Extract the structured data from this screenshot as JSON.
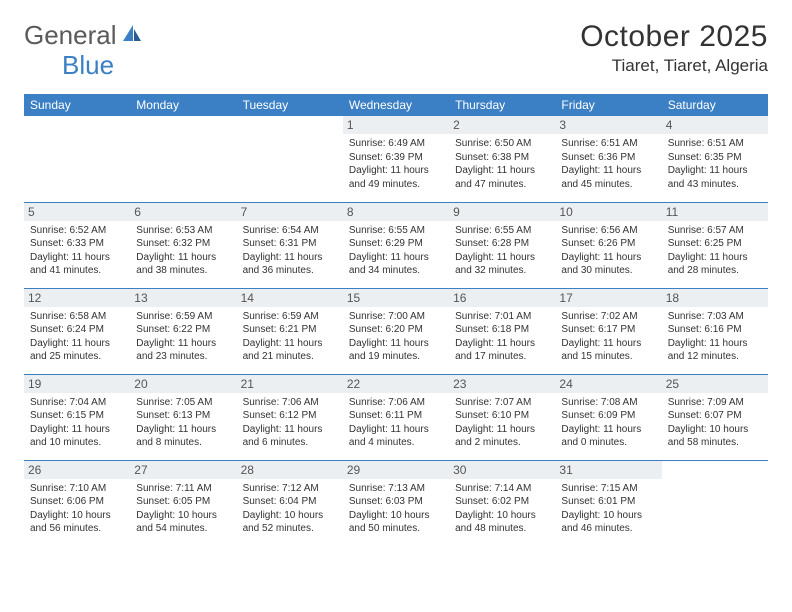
{
  "logo": {
    "text1": "General",
    "text2": "Blue"
  },
  "title": "October 2025",
  "location": "Tiaret, Tiaret, Algeria",
  "colors": {
    "header_bg": "#3b7fc4",
    "header_fg": "#ffffff",
    "daynum_bg": "#eceff1",
    "border": "#3b7fc4",
    "text": "#333333"
  },
  "weekdays": [
    "Sunday",
    "Monday",
    "Tuesday",
    "Wednesday",
    "Thursday",
    "Friday",
    "Saturday"
  ],
  "weeks": [
    [
      {
        "n": "",
        "sr": "",
        "ss": "",
        "dl": ""
      },
      {
        "n": "",
        "sr": "",
        "ss": "",
        "dl": ""
      },
      {
        "n": "",
        "sr": "",
        "ss": "",
        "dl": ""
      },
      {
        "n": "1",
        "sr": "Sunrise: 6:49 AM",
        "ss": "Sunset: 6:39 PM",
        "dl": "Daylight: 11 hours and 49 minutes."
      },
      {
        "n": "2",
        "sr": "Sunrise: 6:50 AM",
        "ss": "Sunset: 6:38 PM",
        "dl": "Daylight: 11 hours and 47 minutes."
      },
      {
        "n": "3",
        "sr": "Sunrise: 6:51 AM",
        "ss": "Sunset: 6:36 PM",
        "dl": "Daylight: 11 hours and 45 minutes."
      },
      {
        "n": "4",
        "sr": "Sunrise: 6:51 AM",
        "ss": "Sunset: 6:35 PM",
        "dl": "Daylight: 11 hours and 43 minutes."
      }
    ],
    [
      {
        "n": "5",
        "sr": "Sunrise: 6:52 AM",
        "ss": "Sunset: 6:33 PM",
        "dl": "Daylight: 11 hours and 41 minutes."
      },
      {
        "n": "6",
        "sr": "Sunrise: 6:53 AM",
        "ss": "Sunset: 6:32 PM",
        "dl": "Daylight: 11 hours and 38 minutes."
      },
      {
        "n": "7",
        "sr": "Sunrise: 6:54 AM",
        "ss": "Sunset: 6:31 PM",
        "dl": "Daylight: 11 hours and 36 minutes."
      },
      {
        "n": "8",
        "sr": "Sunrise: 6:55 AM",
        "ss": "Sunset: 6:29 PM",
        "dl": "Daylight: 11 hours and 34 minutes."
      },
      {
        "n": "9",
        "sr": "Sunrise: 6:55 AM",
        "ss": "Sunset: 6:28 PM",
        "dl": "Daylight: 11 hours and 32 minutes."
      },
      {
        "n": "10",
        "sr": "Sunrise: 6:56 AM",
        "ss": "Sunset: 6:26 PM",
        "dl": "Daylight: 11 hours and 30 minutes."
      },
      {
        "n": "11",
        "sr": "Sunrise: 6:57 AM",
        "ss": "Sunset: 6:25 PM",
        "dl": "Daylight: 11 hours and 28 minutes."
      }
    ],
    [
      {
        "n": "12",
        "sr": "Sunrise: 6:58 AM",
        "ss": "Sunset: 6:24 PM",
        "dl": "Daylight: 11 hours and 25 minutes."
      },
      {
        "n": "13",
        "sr": "Sunrise: 6:59 AM",
        "ss": "Sunset: 6:22 PM",
        "dl": "Daylight: 11 hours and 23 minutes."
      },
      {
        "n": "14",
        "sr": "Sunrise: 6:59 AM",
        "ss": "Sunset: 6:21 PM",
        "dl": "Daylight: 11 hours and 21 minutes."
      },
      {
        "n": "15",
        "sr": "Sunrise: 7:00 AM",
        "ss": "Sunset: 6:20 PM",
        "dl": "Daylight: 11 hours and 19 minutes."
      },
      {
        "n": "16",
        "sr": "Sunrise: 7:01 AM",
        "ss": "Sunset: 6:18 PM",
        "dl": "Daylight: 11 hours and 17 minutes."
      },
      {
        "n": "17",
        "sr": "Sunrise: 7:02 AM",
        "ss": "Sunset: 6:17 PM",
        "dl": "Daylight: 11 hours and 15 minutes."
      },
      {
        "n": "18",
        "sr": "Sunrise: 7:03 AM",
        "ss": "Sunset: 6:16 PM",
        "dl": "Daylight: 11 hours and 12 minutes."
      }
    ],
    [
      {
        "n": "19",
        "sr": "Sunrise: 7:04 AM",
        "ss": "Sunset: 6:15 PM",
        "dl": "Daylight: 11 hours and 10 minutes."
      },
      {
        "n": "20",
        "sr": "Sunrise: 7:05 AM",
        "ss": "Sunset: 6:13 PM",
        "dl": "Daylight: 11 hours and 8 minutes."
      },
      {
        "n": "21",
        "sr": "Sunrise: 7:06 AM",
        "ss": "Sunset: 6:12 PM",
        "dl": "Daylight: 11 hours and 6 minutes."
      },
      {
        "n": "22",
        "sr": "Sunrise: 7:06 AM",
        "ss": "Sunset: 6:11 PM",
        "dl": "Daylight: 11 hours and 4 minutes."
      },
      {
        "n": "23",
        "sr": "Sunrise: 7:07 AM",
        "ss": "Sunset: 6:10 PM",
        "dl": "Daylight: 11 hours and 2 minutes."
      },
      {
        "n": "24",
        "sr": "Sunrise: 7:08 AM",
        "ss": "Sunset: 6:09 PM",
        "dl": "Daylight: 11 hours and 0 minutes."
      },
      {
        "n": "25",
        "sr": "Sunrise: 7:09 AM",
        "ss": "Sunset: 6:07 PM",
        "dl": "Daylight: 10 hours and 58 minutes."
      }
    ],
    [
      {
        "n": "26",
        "sr": "Sunrise: 7:10 AM",
        "ss": "Sunset: 6:06 PM",
        "dl": "Daylight: 10 hours and 56 minutes."
      },
      {
        "n": "27",
        "sr": "Sunrise: 7:11 AM",
        "ss": "Sunset: 6:05 PM",
        "dl": "Daylight: 10 hours and 54 minutes."
      },
      {
        "n": "28",
        "sr": "Sunrise: 7:12 AM",
        "ss": "Sunset: 6:04 PM",
        "dl": "Daylight: 10 hours and 52 minutes."
      },
      {
        "n": "29",
        "sr": "Sunrise: 7:13 AM",
        "ss": "Sunset: 6:03 PM",
        "dl": "Daylight: 10 hours and 50 minutes."
      },
      {
        "n": "30",
        "sr": "Sunrise: 7:14 AM",
        "ss": "Sunset: 6:02 PM",
        "dl": "Daylight: 10 hours and 48 minutes."
      },
      {
        "n": "31",
        "sr": "Sunrise: 7:15 AM",
        "ss": "Sunset: 6:01 PM",
        "dl": "Daylight: 10 hours and 46 minutes."
      },
      {
        "n": "",
        "sr": "",
        "ss": "",
        "dl": ""
      }
    ]
  ]
}
